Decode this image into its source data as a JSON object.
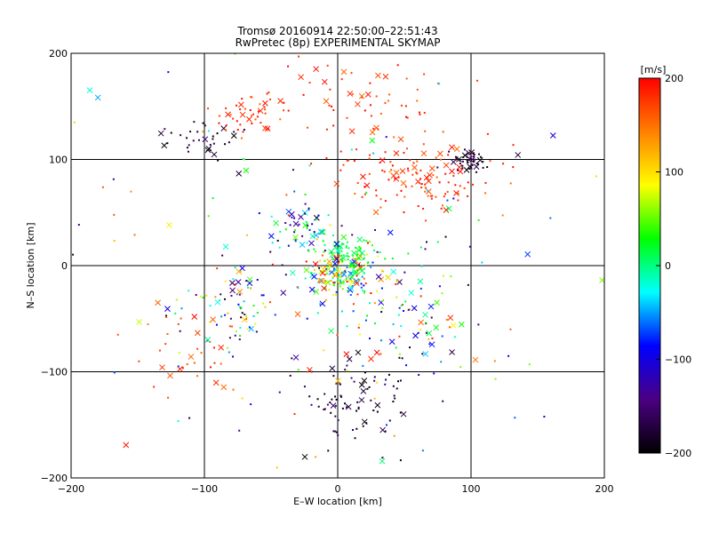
{
  "chart_data": {
    "type": "scatter",
    "title": "Tromsø 20160914 22:50:00–22:51:43",
    "subtitle": "RwPretec (8p) EXPERIMENTAL SKYMAP",
    "xlabel": "E–W location [km]",
    "ylabel": "N–S location [km]",
    "xlim": [
      -200,
      200
    ],
    "ylim": [
      -200,
      200
    ],
    "xticks": [
      -200,
      -100,
      0,
      100,
      200
    ],
    "yticks": [
      -200,
      -100,
      0,
      100,
      200
    ],
    "grid_lines": {
      "x": [
        -100,
        0,
        100
      ],
      "y": [
        -100,
        0,
        100
      ]
    },
    "marker_styles": [
      "dot",
      "x"
    ],
    "colorbar": {
      "label": "[m/s]",
      "range": [
        -200,
        200
      ],
      "ticks": [
        200,
        100,
        0,
        -100,
        -200
      ],
      "colors": [
        "#ff0000",
        "#ff8000",
        "#ffff00",
        "#00ff00",
        "#00ffff",
        "#0000ff",
        "#4b0082",
        "#000000"
      ]
    },
    "clusters": [
      {
        "center": [
          5,
          -8
        ],
        "spread": [
          14,
          12
        ],
        "count": 180,
        "velocity": [
          -100,
          200
        ]
      },
      {
        "center": [
          8,
          12
        ],
        "spread": [
          10,
          8
        ],
        "count": 60,
        "velocity": [
          0,
          40
        ]
      },
      {
        "center": [
          60,
          80
        ],
        "spread": [
          30,
          18
        ],
        "count": 120,
        "velocity": [
          150,
          200
        ]
      },
      {
        "center": [
          100,
          98
        ],
        "spread": [
          10,
          5
        ],
        "count": 45,
        "velocity": [
          -200,
          -160
        ]
      },
      {
        "center": [
          -25,
          30
        ],
        "spread": [
          15,
          14
        ],
        "count": 60,
        "velocity": [
          -200,
          50
        ]
      },
      {
        "center": [
          -100,
          120
        ],
        "spread": [
          15,
          10
        ],
        "count": 35,
        "velocity": [
          -200,
          -150
        ]
      },
      {
        "center": [
          -65,
          140
        ],
        "spread": [
          15,
          10
        ],
        "count": 45,
        "velocity": [
          150,
          200
        ]
      },
      {
        "center": [
          -80,
          -35
        ],
        "spread": [
          20,
          20
        ],
        "count": 80,
        "velocity": [
          -200,
          200
        ]
      },
      {
        "center": [
          10,
          -130
        ],
        "spread": [
          20,
          22
        ],
        "count": 80,
        "velocity": [
          -200,
          -150
        ]
      },
      {
        "center": [
          50,
          -60
        ],
        "spread": [
          25,
          30
        ],
        "count": 80,
        "velocity": [
          -200,
          200
        ]
      },
      {
        "center": [
          30,
          150
        ],
        "spread": [
          40,
          30
        ],
        "count": 70,
        "velocity": [
          150,
          200
        ]
      },
      {
        "center": [
          -110,
          -85
        ],
        "spread": [
          20,
          20
        ],
        "count": 30,
        "velocity": [
          150,
          200
        ]
      },
      {
        "center": [
          0,
          0
        ],
        "spread": [
          110,
          110
        ],
        "count": 160,
        "velocity": [
          -200,
          200
        ]
      }
    ]
  }
}
